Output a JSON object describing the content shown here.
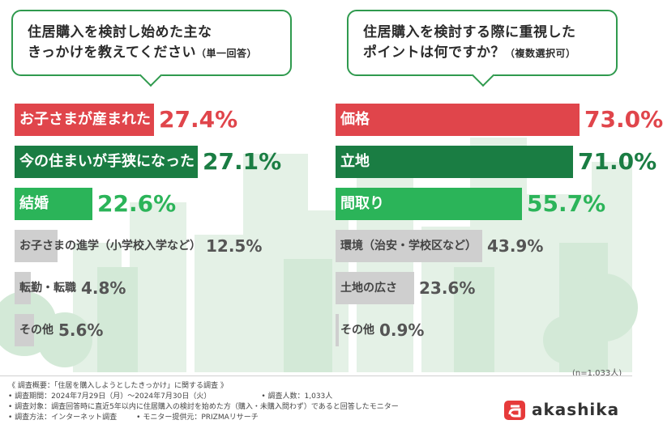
{
  "questions": {
    "left": {
      "line1": "住居購入を検討し始めた主な",
      "line2": "きっかけを教えてください",
      "line2_small": "（単一回答）"
    },
    "right": {
      "line1": "住居購入を検討する際に重視した",
      "line2": "ポイントは何ですか？",
      "line2_small": "（複数選択可）"
    }
  },
  "chart_data": [
    {
      "type": "bar",
      "orientation": "horizontal",
      "title": "住居購入を検討し始めた主なきっかけを教えてください（単一回答）",
      "unit": "%",
      "xlim": [
        0,
        80
      ],
      "categories": [
        "お子さまが産まれた",
        "今の住まいが手狭になった",
        "結婚",
        "お子さまの進学（小学校入学など）",
        "転勤・転職",
        "その他"
      ],
      "values": [
        27.4,
        27.1,
        22.6,
        12.5,
        4.8,
        5.6
      ],
      "value_labels": [
        "27.4%",
        "27.1%",
        "22.6%",
        "12.5%",
        "4.8%",
        "5.6%"
      ],
      "bar_colors": [
        "#e0454b",
        "#1a7d43",
        "#2bb459",
        "#cfcfcf",
        "#cfcfcf",
        "#cfcfcf"
      ],
      "label_colors": [
        "#e0454b",
        "#1a7d43",
        "#2bb459",
        "#555555",
        "#555555",
        "#555555"
      ]
    },
    {
      "type": "bar",
      "orientation": "horizontal",
      "title": "住居購入を検討する際に重視したポイントは何ですか？（複数選択可）",
      "unit": "%",
      "xlim": [
        0,
        80
      ],
      "categories": [
        "価格",
        "立地",
        "間取り",
        "環境（治安・学校区など）",
        "土地の広さ",
        "その他"
      ],
      "values": [
        73.0,
        71.0,
        55.7,
        43.9,
        23.6,
        0.9
      ],
      "value_labels": [
        "73.0%",
        "71.0%",
        "55.7%",
        "43.9%",
        "23.6%",
        "0.9%"
      ],
      "bar_colors": [
        "#e0454b",
        "#1a7d43",
        "#2bb459",
        "#cfcfcf",
        "#cfcfcf",
        "#cfcfcf"
      ],
      "label_colors": [
        "#e0454b",
        "#1a7d43",
        "#2bb459",
        "#555555",
        "#555555",
        "#555555"
      ]
    }
  ],
  "sample_note": "(n=1,033人)",
  "footer": {
    "lines": [
      "《 調査概要：「住居を購入しようとしたきっかけ」に関する調査 》",
      "• 調査期間：2024年7月29日（月）～2024年7月30日（火）",
      "• 調査人数：1,033人",
      "• 調査対象：調査回答時に直近5年以内に住居購入の検討を始めた方（購入・未購入問わず）であると回答したモニター",
      "• 調査方法：インターネット調査",
      "• モニター提供元：PRIZMAリサーチ"
    ]
  },
  "logo": {
    "text": "akashika",
    "color": "#e63a3a"
  }
}
